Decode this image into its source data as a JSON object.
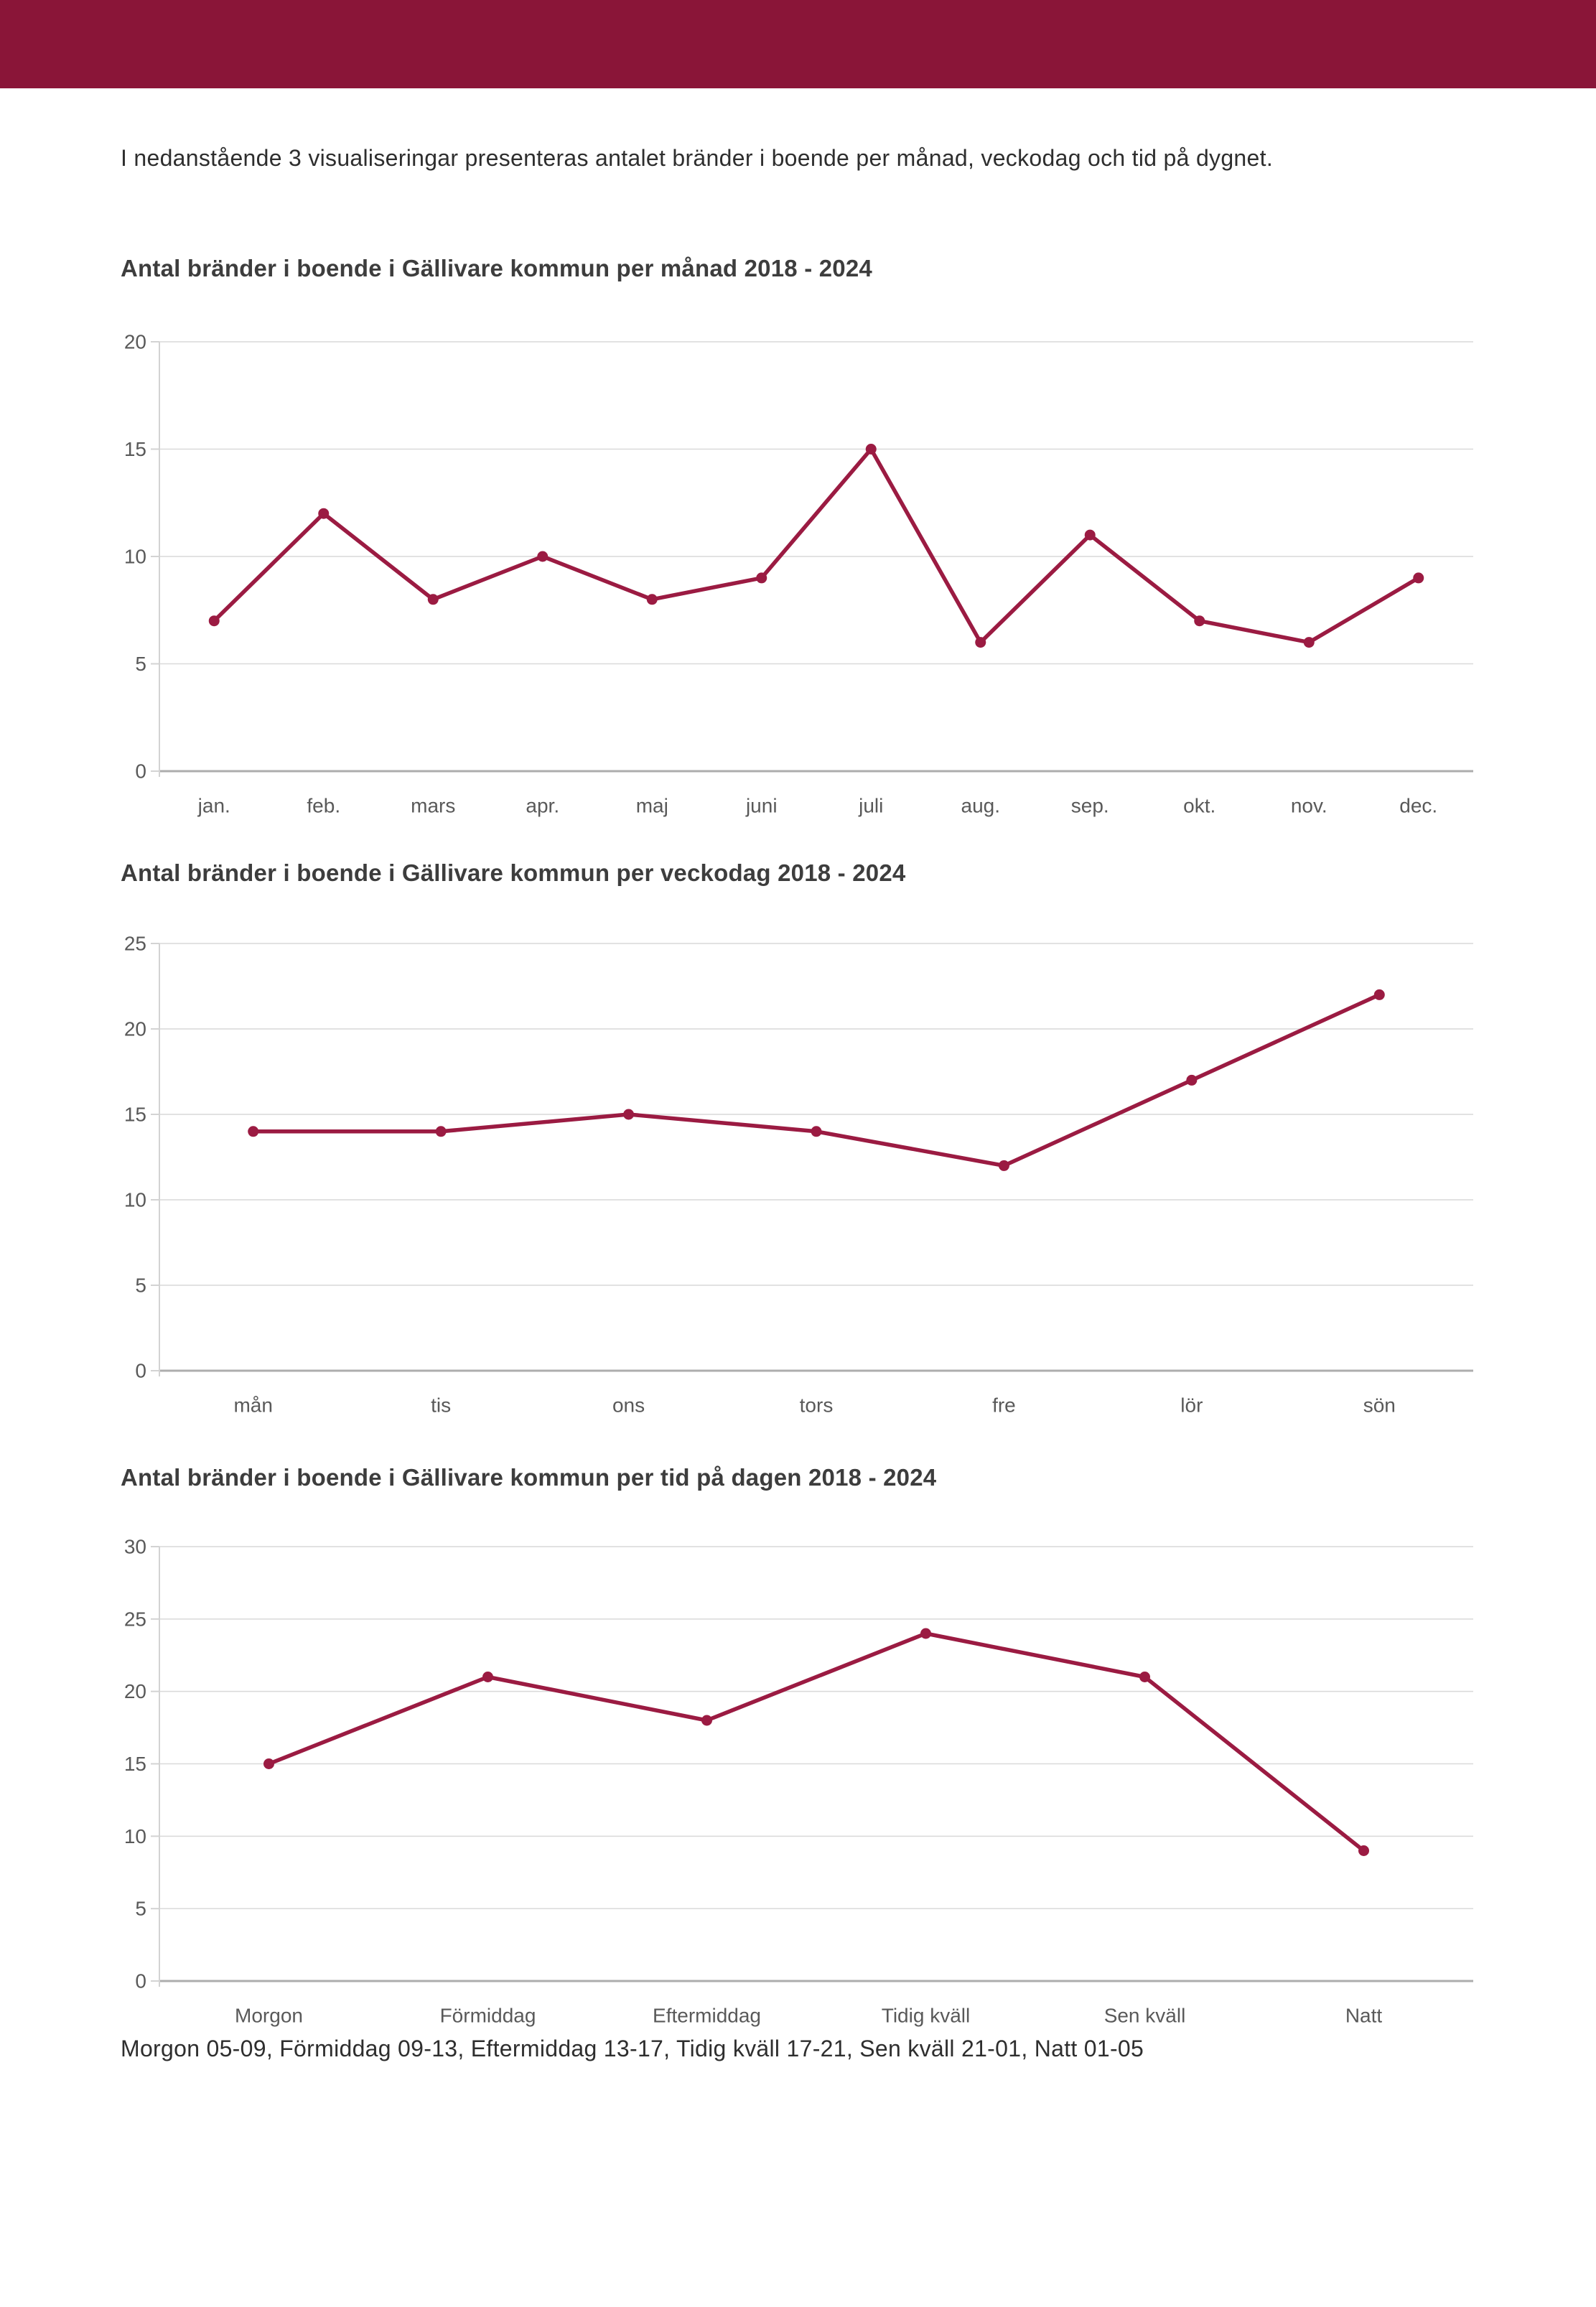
{
  "page": {
    "intro": "I nedanstående 3 visualiseringar presenteras antalet bränder i boende per månad, veckodag och tid på dygnet.",
    "footnote": "Morgon 05-09, Förmiddag 09-13, Eftermiddag 13-17, Tidig kväll 17-21, Sen kväll 21-01, Natt 01-05"
  },
  "colors": {
    "header": "#8A1538",
    "line": "#9B1B42",
    "grid": "#D9D9D9",
    "zero_axis": "#ADADAD",
    "axis_line": "#D3D3D3",
    "tick_label": "#595959",
    "title": "#3D3D3D",
    "text": "#2E2E2E"
  },
  "chart_data": [
    {
      "type": "line",
      "title": "Antal bränder i boende i Gällivare kommun per månad 2018 - 2024",
      "categories": [
        "jan.",
        "feb.",
        "mars",
        "apr.",
        "maj",
        "juni",
        "juli",
        "aug.",
        "sep.",
        "okt.",
        "nov.",
        "dec."
      ],
      "values": [
        7,
        12,
        8,
        10,
        8,
        9,
        15,
        6,
        11,
        7,
        6,
        9
      ],
      "xlabel": "",
      "ylabel": "",
      "ylim": [
        0,
        20
      ],
      "ytick_step": 5,
      "grid": true,
      "legend": "none",
      "marker": "circle"
    },
    {
      "type": "line",
      "title": "Antal bränder i boende i Gällivare kommun per veckodag 2018 - 2024",
      "categories": [
        "mån",
        "tis",
        "ons",
        "tors",
        "fre",
        "lör",
        "sön"
      ],
      "values": [
        14,
        14,
        15,
        14,
        12,
        17,
        22
      ],
      "xlabel": "",
      "ylabel": "",
      "ylim": [
        0,
        25
      ],
      "ytick_step": 5,
      "grid": true,
      "legend": "none",
      "marker": "circle"
    },
    {
      "type": "line",
      "title": "Antal bränder i boende i Gällivare kommun per tid på dagen 2018 - 2024",
      "categories": [
        "Morgon",
        "Förmiddag",
        "Eftermiddag",
        "Tidig kväll",
        "Sen kväll",
        "Natt"
      ],
      "values": [
        15,
        21,
        18,
        24,
        21,
        9
      ],
      "xlabel": "",
      "ylabel": "",
      "ylim": [
        0,
        30
      ],
      "ytick_step": 5,
      "grid": true,
      "legend": "none",
      "marker": "circle"
    }
  ]
}
